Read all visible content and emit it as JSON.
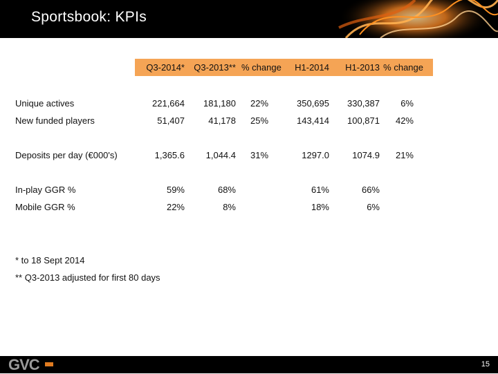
{
  "header": {
    "title": "Sportsbook: KPIs"
  },
  "table": {
    "columns": [
      "Q3-2014*",
      "Q3-2013**",
      "% change",
      "H1-2014",
      "H1-2013",
      "% change"
    ],
    "rows": [
      {
        "label": "Unique actives",
        "cells": [
          "221,664",
          "181,180",
          "22%",
          "350,695",
          "330,387",
          "6%"
        ]
      },
      {
        "label": "New funded players",
        "cells": [
          "51,407",
          "41,178",
          "25%",
          "143,414",
          "100,871",
          "42%"
        ]
      },
      {
        "label": "Deposits per day (€000's)",
        "cells": [
          "1,365.6",
          "1,044.4",
          "31%",
          "1297.0",
          "1074.9",
          "21%"
        ]
      },
      {
        "label": "In-play GGR %",
        "cells": [
          "59%",
          "68%",
          null,
          "61%",
          "66%",
          null
        ]
      },
      {
        "label": "Mobile GGR %",
        "cells": [
          "22%",
          "8%",
          null,
          "18%",
          "6%",
          null
        ]
      }
    ]
  },
  "footnotes": [
    "* to 18 Sept 2014",
    "** Q3-2013 adjusted for first 80 days"
  ],
  "footer": {
    "logo": "GVC",
    "page_number": "15"
  }
}
